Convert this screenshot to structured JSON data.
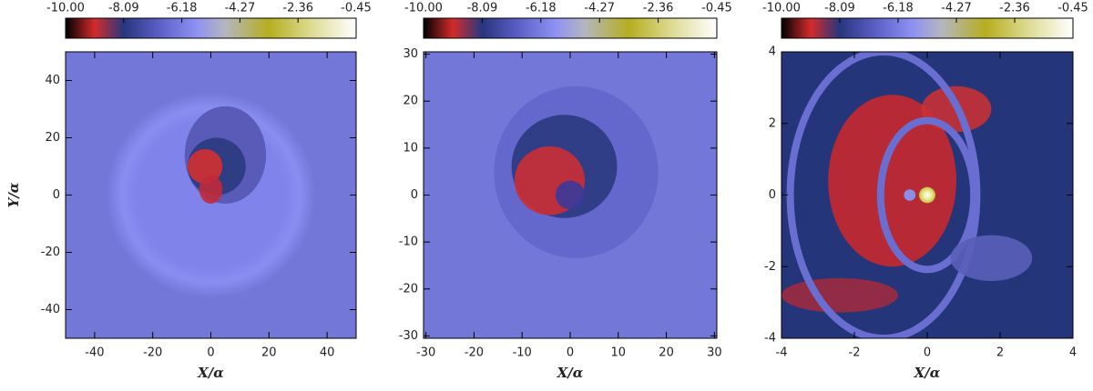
{
  "chart_data": [
    {
      "type": "image",
      "clim": [
        -10,
        -0.45
      ],
      "cticks": [
        {
          "value": -10,
          "label": "-10.00"
        },
        -8.09,
        -6.18,
        -4.27,
        -2.36,
        -0.45
      ],
      "xlabel": "X/α",
      "ylabel": "Y/α",
      "xlim": [
        -50,
        50
      ],
      "ylim": [
        -50,
        50
      ],
      "xticks": [
        -40,
        -20,
        0,
        20,
        40
      ],
      "yticks": [
        -40,
        -20,
        0,
        20,
        40
      ]
    },
    {
      "type": "image",
      "clim": [
        -10,
        -0.45
      ],
      "cticks": [
        {
          "value": -10,
          "label": "-10.00"
        },
        -8.09,
        -6.18,
        -4.27,
        -2.36,
        -0.45
      ],
      "xlabel": "X/α",
      "xlim": [
        -30.5,
        30.5
      ],
      "ylim": [
        -30.5,
        30.5
      ],
      "xticks": [
        -30,
        -20,
        -10,
        0,
        10,
        20,
        30
      ],
      "yticks": [
        -30,
        -20,
        -10,
        0,
        10,
        20,
        30
      ]
    },
    {
      "type": "image",
      "clim": [
        -10,
        -0.45
      ],
      "cticks": [
        {
          "value": -10,
          "label": "-10.00"
        },
        -8.09,
        -6.18,
        -4.27,
        -2.36,
        -0.45
      ],
      "xlabel": "X/α",
      "xlim": [
        -4,
        4
      ],
      "ylim": [
        -4,
        4
      ],
      "xticks": [
        -4,
        -2,
        0,
        2,
        4
      ],
      "yticks": [
        -4,
        -2,
        0,
        2,
        4
      ]
    }
  ]
}
